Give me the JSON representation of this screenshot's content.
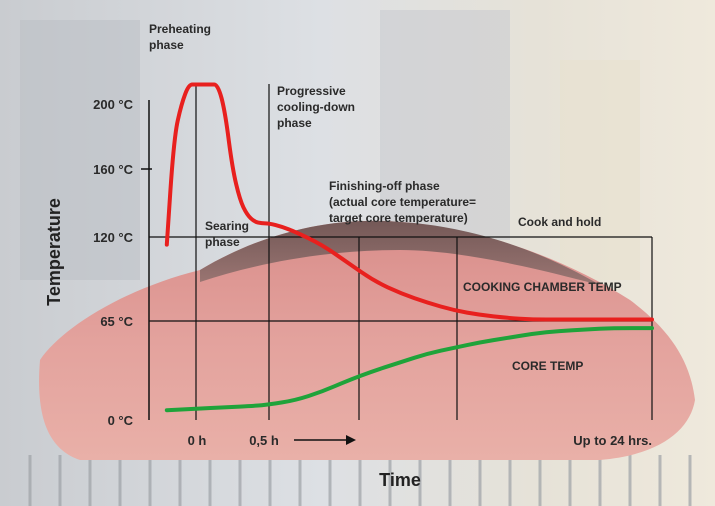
{
  "chart_data": {
    "type": "line",
    "title": "",
    "xlabel": "Time",
    "ylabel": "Temperature",
    "x_tick_labels": [
      "0 h",
      "0,5 h",
      "Up to 24 hrs."
    ],
    "y_tick_labels": [
      "0 °C",
      "65 °C",
      "120 °C",
      "160 °C",
      "200 °C"
    ],
    "y_tick_values": [
      0,
      65,
      120,
      160,
      200
    ],
    "x_arrow": "arrow-right",
    "phases": {
      "preheating": [
        "Preheating",
        "phase"
      ],
      "searing": [
        "Searing",
        "phase"
      ],
      "cooling": [
        "Progressive",
        "cooling-down",
        "phase"
      ],
      "finishing": [
        "Finishing-off phase",
        "(actual core temperature=",
        "target core temperature)"
      ],
      "hold": [
        "Cook and hold"
      ]
    },
    "series": [
      {
        "name": "COOKING CHAMBER TEMP",
        "color": "#e8201e",
        "x": [
          -0.2,
          -0.15,
          -0.1,
          -0.05,
          0,
          0.05,
          0.1,
          0.15,
          0.2,
          0.25,
          0.3,
          0.35,
          0.4,
          0.45,
          0.5,
          0.55,
          0.6,
          0.7,
          0.8,
          0.9,
          1.0,
          1.1,
          1.2,
          1.3,
          1.4,
          1.5,
          1.6,
          1.7,
          1.8,
          1.95
        ],
        "y": [
          115,
          180,
          200,
          212,
          212,
          212,
          212,
          212,
          195,
          160,
          142,
          133,
          129,
          128,
          128,
          126,
          123,
          115,
          103,
          91,
          83,
          77,
          72,
          69,
          67,
          66,
          66,
          66,
          66,
          66
        ]
      },
      {
        "name": "CORE TEMP",
        "color": "#1fa33a",
        "x": [
          -0.2,
          0,
          0.2,
          0.4,
          0.5,
          0.6,
          0.7,
          0.8,
          0.9,
          1.0,
          1.1,
          1.2,
          1.3,
          1.4,
          1.5,
          1.6,
          1.7,
          1.8,
          1.95
        ],
        "y": [
          2,
          3,
          4,
          5,
          6,
          9,
          15,
          23,
          30,
          36,
          42,
          46,
          50,
          53,
          56,
          58,
          59,
          60,
          60
        ]
      }
    ]
  }
}
